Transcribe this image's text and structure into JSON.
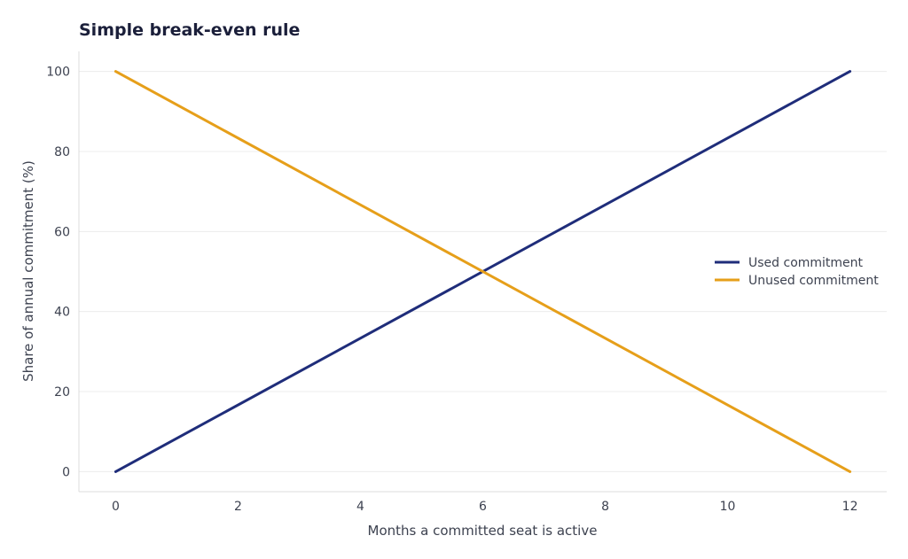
{
  "chart_data": {
    "type": "line",
    "title": "Simple break-even rule",
    "xlabel": "Months a committed seat is active",
    "ylabel": "Share of annual commitment (%)",
    "xlim": [
      -0.6,
      12.6
    ],
    "ylim": [
      -5,
      105
    ],
    "xticks": [
      0,
      2,
      4,
      6,
      8,
      10,
      12
    ],
    "yticks": [
      0,
      20,
      40,
      60,
      80,
      100
    ],
    "grid": "horizontal",
    "legend_position": "right",
    "series": [
      {
        "name": "Used commitment",
        "color": "#1f2d7a",
        "x": [
          0,
          12
        ],
        "y": [
          0,
          100
        ]
      },
      {
        "name": "Unused commitment",
        "color": "#e69f1a",
        "x": [
          0,
          12
        ],
        "y": [
          100,
          0
        ]
      }
    ]
  }
}
